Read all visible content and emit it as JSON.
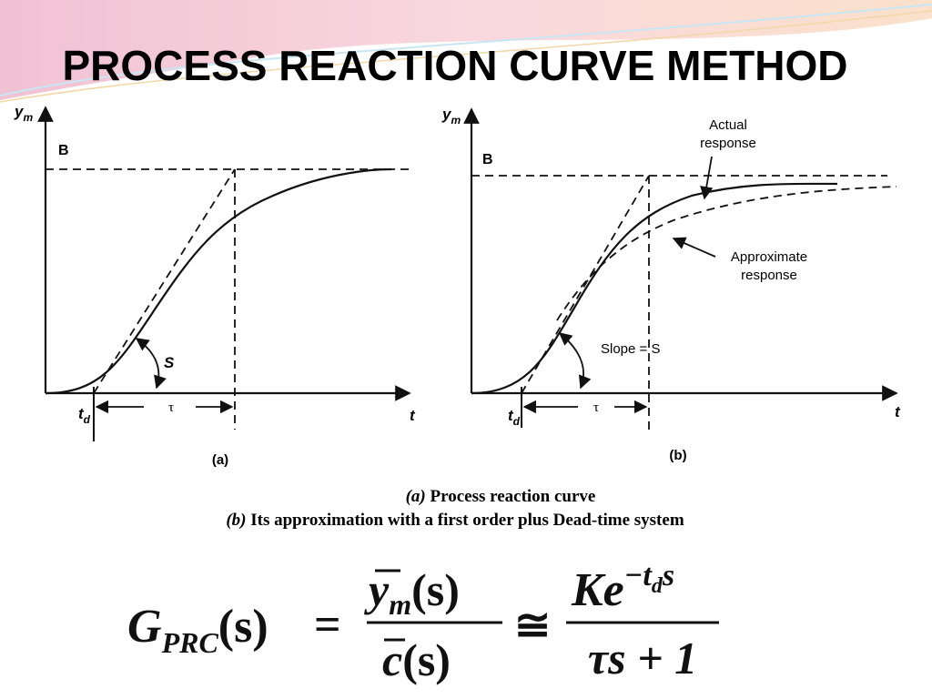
{
  "header": {
    "title": "PROCESS REACTION CURVE METHOD"
  },
  "figure_a": {
    "y_axis": {
      "base": "y",
      "sub": "m"
    },
    "level": "B",
    "slope": "S",
    "dead_time": {
      "base": "t",
      "sub": "d"
    },
    "time_constant": "τ",
    "x_axis": "t",
    "label": "(a)"
  },
  "figure_b": {
    "y_axis": {
      "base": "y",
      "sub": "m"
    },
    "level": "B",
    "actual": [
      "Actual",
      "response"
    ],
    "approximate": [
      "Approximate",
      "response"
    ],
    "slope": "Slope = S",
    "dead_time": {
      "base": "t",
      "sub": "d"
    },
    "time_constant": "τ",
    "x_axis": "t",
    "label": "(b)"
  },
  "caption": [
    {
      "label": "(a)",
      "text": "Process reaction curve"
    },
    {
      "label": "(b)",
      "text": "Its approximation with a first order plus Dead-time system"
    }
  ],
  "formula": {
    "lhs": {
      "base": "G",
      "sub": "PRC",
      "arg": "(s)"
    },
    "equals": "=",
    "fraction1": {
      "num_base": "y",
      "num_sub": "m",
      "num_arg": "(s)",
      "den_base": "c",
      "den_arg": "(s)"
    },
    "approx": "≅",
    "fraction2": {
      "num": "Ke",
      "exp": "−t",
      "exp_sub": "d",
      "exp_tail": "s",
      "den": "τs + 1"
    }
  }
}
